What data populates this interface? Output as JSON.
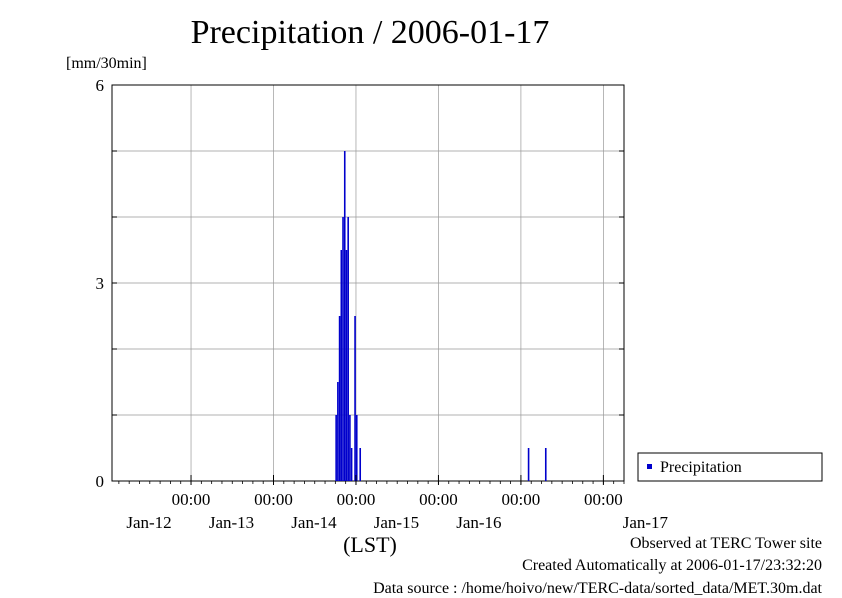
{
  "chart_data": {
    "type": "bar",
    "title": "Precipitation / 2006-01-17",
    "ylabel": "[mm/30min]",
    "xlabel": "(LST)",
    "ylim": [
      0,
      6
    ],
    "yticks": [
      "0",
      "3",
      "6"
    ],
    "xlim": [
      "2006-01-11T01:00",
      "2006-01-17T06:00"
    ],
    "xticks": [
      {
        "at": "2006-01-12T00:00",
        "time": "00:00",
        "date": "Jan-12"
      },
      {
        "at": "2006-01-13T00:00",
        "time": "00:00",
        "date": "Jan-13"
      },
      {
        "at": "2006-01-14T00:00",
        "time": "00:00",
        "date": "Jan-14"
      },
      {
        "at": "2006-01-15T00:00",
        "time": "00:00",
        "date": "Jan-15"
      },
      {
        "at": "2006-01-16T00:00",
        "time": "00:00",
        "date": "Jan-16"
      },
      {
        "at": "2006-01-17T00:00",
        "time": "00:00",
        "date": ""
      }
    ],
    "extra_date_label": "Jan-17",
    "grid": true,
    "legend_position": "right",
    "series": [
      {
        "name": "Precipitation",
        "color": "#0000cc",
        "points": [
          {
            "t": "2006-01-13T18:00",
            "v": 1.0
          },
          {
            "t": "2006-01-13T18:30",
            "v": 1.5
          },
          {
            "t": "2006-01-13T19:00",
            "v": 2.5
          },
          {
            "t": "2006-01-13T19:30",
            "v": 3.5
          },
          {
            "t": "2006-01-13T20:00",
            "v": 4.0
          },
          {
            "t": "2006-01-13T20:30",
            "v": 5.0
          },
          {
            "t": "2006-01-13T21:00",
            "v": 3.5
          },
          {
            "t": "2006-01-13T21:30",
            "v": 4.0
          },
          {
            "t": "2006-01-13T22:00",
            "v": 1.0
          },
          {
            "t": "2006-01-13T22:30",
            "v": 0.5
          },
          {
            "t": "2006-01-13T23:30",
            "v": 2.5
          },
          {
            "t": "2006-01-14T00:00",
            "v": 1.0
          },
          {
            "t": "2006-01-14T01:00",
            "v": 0.5
          },
          {
            "t": "2006-01-16T02:00",
            "v": 0.5
          },
          {
            "t": "2006-01-16T07:00",
            "v": 0.5
          }
        ]
      }
    ]
  },
  "footer": {
    "site": "Observed at TERC Tower site",
    "created": "Created Automatically at 2006-01-17/23:32:20",
    "source": "Data source : /home/hoivo/new/TERC-data/sorted_data/MET.30m.dat"
  }
}
